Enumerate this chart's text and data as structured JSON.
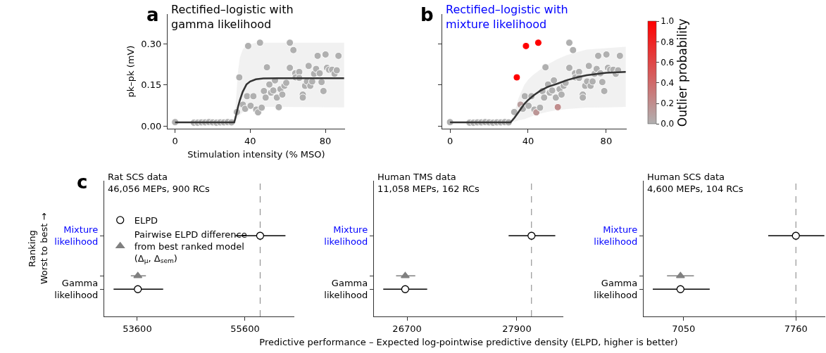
{
  "chart_data": [
    {
      "type": "scatter",
      "title": "Rectified–logistic with\ngamma likelihood",
      "xlabel": "Stimulation intensity (% MSO)",
      "ylabel": "pk–pk (mV)",
      "annotations": [
        "a"
      ],
      "xlim": [
        -4,
        90.5
      ],
      "ylim": [
        -0.01,
        0.41
      ],
      "xticks": [
        0,
        40,
        80
      ],
      "yticks": [
        {
          "value": 0,
          "label": "0.00"
        },
        {
          "value": 0.15,
          "label": "0.15"
        },
        {
          "value": 0.3,
          "label": "0.30"
        }
      ],
      "series": [
        {
          "type": "scatter",
          "marker": "circle",
          "color": "#b0b0b0",
          "x": [
            0,
            10,
            12,
            14,
            16,
            18,
            20,
            22,
            24,
            26,
            28,
            30,
            32.9,
            34.2,
            36.1,
            37.3,
            38.3,
            38.9,
            40.2,
            41.7,
            43.2,
            44.2,
            45.2,
            46.1,
            47.3,
            48.2,
            48.9,
            50.2,
            51.1,
            52.3,
            53.2,
            54.2,
            55.2,
            56.1,
            57.1,
            58.2,
            59.2,
            61.1,
            61.1,
            63.0,
            64.0,
            64.2,
            66.1,
            66.1,
            68.0,
            68.0,
            69.2,
            70.2,
            71.1,
            72.0,
            73.0,
            74.0,
            75.1,
            75.9,
            77.0,
            78.0,
            79.0,
            80.1,
            80.9,
            82.0,
            83.6,
            84.9,
            86.1,
            87.0
          ],
          "values": [
            0.014,
            0.012,
            0.012,
            0.013,
            0.013,
            0.014,
            0.013,
            0.012,
            0.013,
            0.013,
            0.014,
            0.013,
            0.051,
            0.178,
            0.078,
            0.063,
            0.109,
            0.293,
            0.074,
            0.109,
            0.06,
            0.05,
            0.305,
            0.067,
            0.128,
            0.104,
            0.215,
            0.152,
            0.122,
            0.13,
            0.167,
            0.104,
            0.069,
            0.135,
            0.115,
            0.147,
            0.158,
            0.305,
            0.213,
            0.278,
            0.193,
            0.178,
            0.198,
            0.176,
            0.115,
            0.104,
            0.147,
            0.163,
            0.22,
            0.147,
            0.163,
            0.191,
            0.209,
            0.257,
            0.193,
            0.161,
            0.128,
            0.262,
            0.213,
            0.206,
            0.206,
            0.191,
            0.204,
            0.257
          ]
        },
        {
          "type": "line",
          "color": "#333333",
          "x": [
            0,
            31.5,
            32.5,
            33.5,
            34.5,
            36,
            38,
            40,
            43,
            47,
            55,
            90
          ],
          "values": [
            0.013,
            0.013,
            0.04,
            0.07,
            0.095,
            0.125,
            0.152,
            0.163,
            0.171,
            0.174,
            0.175,
            0.175
          ],
          "lower": [
            0.013,
            0.013,
            0.02,
            0.03,
            0.04,
            0.05,
            0.06,
            0.065,
            0.068,
            0.07,
            0.07,
            0.068
          ],
          "upper": [
            0.013,
            0.013,
            0.1,
            0.2,
            0.25,
            0.28,
            0.295,
            0.3,
            0.305,
            0.305,
            0.305,
            0.305
          ]
        }
      ]
    },
    {
      "type": "scatter",
      "title": "Rectified–logistic with\nmixture likelihood",
      "clabel": "Outlier probability",
      "annotations": [
        "b"
      ],
      "tick_labels": "x",
      "xlim": [
        -4,
        90.5
      ],
      "ylim": [
        -0.01,
        0.41
      ],
      "xticks": [
        0,
        40,
        80
      ],
      "yticks": [
        {
          "value": 0,
          "label": null
        },
        {
          "value": 0.15,
          "label": null
        },
        {
          "value": 0.3,
          "label": null
        }
      ],
      "clim": [
        0,
        1
      ],
      "cticks": [
        {
          "value": 0,
          "label": "0.0"
        },
        {
          "value": 0.2,
          "label": "0.2"
        },
        {
          "value": 0.4,
          "label": "0.4"
        },
        {
          "value": 0.6,
          "label": "0.6"
        },
        {
          "value": 0.8,
          "label": "0.8"
        },
        {
          "value": 1,
          "label": "1.0"
        }
      ],
      "series": [
        {
          "type": "scatter",
          "marker": "circle",
          "x": [
            0,
            10,
            12,
            14,
            16,
            18,
            20,
            22,
            24,
            26,
            28,
            30,
            32.9,
            34.2,
            36.1,
            37.3,
            38.3,
            38.9,
            40.2,
            41.7,
            43.2,
            44.2,
            45.2,
            46.1,
            47.3,
            48.2,
            48.9,
            50.2,
            51.1,
            52.3,
            53.2,
            54.2,
            55.2,
            56.1,
            57.1,
            58.2,
            59.2,
            61.1,
            61.1,
            63.0,
            64.0,
            64.2,
            66.1,
            66.1,
            68.0,
            68.0,
            69.2,
            70.2,
            71.1,
            72.0,
            73.0,
            74.0,
            75.1,
            75.9,
            77.0,
            78.0,
            79.0,
            80.1,
            80.9,
            82.0,
            83.6,
            84.9,
            86.1,
            87.0
          ],
          "values": [
            0.014,
            0.012,
            0.012,
            0.013,
            0.013,
            0.014,
            0.013,
            0.012,
            0.013,
            0.013,
            0.014,
            0.013,
            0.051,
            0.178,
            0.078,
            0.063,
            0.109,
            0.293,
            0.074,
            0.109,
            0.06,
            0.05,
            0.305,
            0.067,
            0.128,
            0.104,
            0.215,
            0.152,
            0.122,
            0.13,
            0.167,
            0.104,
            0.069,
            0.135,
            0.115,
            0.147,
            0.158,
            0.305,
            0.213,
            0.278,
            0.193,
            0.178,
            0.198,
            0.176,
            0.115,
            0.104,
            0.147,
            0.163,
            0.22,
            0.147,
            0.163,
            0.191,
            0.209,
            0.257,
            0.193,
            0.161,
            0.128,
            0.262,
            0.213,
            0.206,
            0.206,
            0.191,
            0.204,
            0.257
          ],
          "colors": [
            "#b0b0b0",
            "#b0b0b0",
            "#b0b0b0",
            "#b0b0b0",
            "#b0b0b0",
            "#b0b0b0",
            "#b0b0b0",
            "#b0b0b0",
            "#b0b0b0",
            "#b0b0b0",
            "#b0b0b0",
            "#b0b0b0",
            "#b0b0b0",
            "#ff0000",
            "#b89e9e",
            "#b0b0b0",
            "#b0b0b0",
            "#ff0000",
            "#b0b0b0",
            "#b0b0b0",
            "#b0b0b0",
            "#bc9696",
            "#ff0000",
            "#b0b0b0",
            "#b0b0b0",
            "#b0b0b0",
            "#b0b0b0",
            "#b0b0b0",
            "#b0b0b0",
            "#b0b0b0",
            "#b0b0b0",
            "#b0b0b0",
            "#c08d8d",
            "#b0b0b0",
            "#b0b0b0",
            "#b0b0b0",
            "#b0b0b0",
            "#b0b0b0",
            "#b0b0b0",
            "#b0b0b0",
            "#b0b0b0",
            "#b0b0b0",
            "#b0b0b0",
            "#b0b0b0",
            "#b0b0b0",
            "#b0b0b0",
            "#b0b0b0",
            "#b0b0b0",
            "#b0b0b0",
            "#b0b0b0",
            "#b0b0b0",
            "#b0b0b0",
            "#b0b0b0",
            "#b0b0b0",
            "#b0b0b0",
            "#b0b0b0",
            "#b0b0b0",
            "#b0b0b0",
            "#b0b0b0",
            "#b0b0b0",
            "#b0b0b0",
            "#b0b0b0",
            "#b0b0b0",
            "#b0b0b0"
          ]
        },
        {
          "type": "line",
          "color": "#333333",
          "x": [
            0,
            31,
            33,
            35,
            38,
            40,
            43,
            46,
            50,
            55,
            60,
            65,
            70,
            80,
            90
          ],
          "values": [
            0.013,
            0.013,
            0.03,
            0.05,
            0.08,
            0.095,
            0.113,
            0.128,
            0.143,
            0.155,
            0.168,
            0.178,
            0.186,
            0.195,
            0.198
          ],
          "lower": [
            0.013,
            0.013,
            0.015,
            0.02,
            0.025,
            0.03,
            0.038,
            0.045,
            0.052,
            0.058,
            0.062,
            0.065,
            0.067,
            0.068,
            0.07
          ],
          "upper": [
            0.013,
            0.013,
            0.05,
            0.1,
            0.15,
            0.17,
            0.19,
            0.205,
            0.225,
            0.245,
            0.26,
            0.27,
            0.28,
            0.285,
            0.29
          ]
        }
      ]
    },
    {
      "type": "scatter",
      "orientation": "horizontal",
      "title": "Rat SCS data\n46,056 MEPs, 900 RCs",
      "ylabel": "Ranking\nWorst to best →",
      "annotations": [
        "c"
      ],
      "legend": "left",
      "xlim": [
        52986,
        56515
      ],
      "xticks": [
        53600,
        55600
      ],
      "categories": [
        "Mixture\nlikelihood",
        null,
        "Gamma\nlikelihood"
      ],
      "ref_lines": [
        {
          "axis": "x",
          "value": 55880,
          "color": "#808080",
          "line_style": "dashed"
        }
      ],
      "series": [
        {
          "name": "ELPD",
          "marker": "circle",
          "color": "#000000",
          "values": [
            55880,
            null,
            53610
          ],
          "errors": [
            [
              55420,
              56350
            ],
            null,
            [
              53160,
              54080
            ]
          ]
        },
        {
          "name": "Pairwise ELPD difference\nfrom best ranked model\n(Δ$_{μ}$, Δ$_{sem}$)",
          "marker": "triangle",
          "color": "#808080",
          "values": [
            null,
            53610,
            null
          ],
          "errors": [
            null,
            [
              53480,
              53760
            ],
            null
          ]
        }
      ]
    },
    {
      "type": "scatter",
      "orientation": "horizontal",
      "title": "Human TMS data\n11,058 MEPs, 162 RCs",
      "xlabel": "Predictive performance – Expected log-pointwise predictive density (ELPD, higher is better)",
      "xlim": [
        26338,
        28408
      ],
      "xticks": [
        26700,
        27900
      ],
      "categories": [
        "Mixture\nlikelihood",
        null,
        "Gamma\nlikelihood"
      ],
      "ref_lines": [
        {
          "axis": "x",
          "value": 28060,
          "color": "#808080",
          "line_style": "dashed"
        }
      ],
      "series": [
        {
          "marker": "circle",
          "color": "#000000",
          "values": [
            28060,
            null,
            26680
          ],
          "errors": [
            [
              27810,
              28320
            ],
            null,
            [
              26440,
              26920
            ]
          ]
        },
        {
          "marker": "triangle",
          "color": "#808080",
          "values": [
            null,
            26680,
            null
          ],
          "errors": [
            null,
            [
              26580,
              26790
            ],
            null
          ]
        }
      ]
    },
    {
      "type": "scatter",
      "orientation": "horizontal",
      "title": "Human SCS data\n4,600 MEPs, 104 RCs",
      "xlim": [
        6797,
        7946
      ],
      "xticks": [
        7050,
        7760
      ],
      "categories": [
        "Mixture\nlikelihood",
        null,
        "Gamma\nlikelihood"
      ],
      "ref_lines": [
        {
          "axis": "x",
          "value": 7760,
          "color": "#808080",
          "line_style": "dashed"
        }
      ],
      "series": [
        {
          "marker": "circle",
          "color": "#000000",
          "values": [
            7760,
            null,
            7030
          ],
          "errors": [
            [
              7585,
              7940
            ],
            null,
            [
              6855,
              7215
            ]
          ]
        },
        {
          "marker": "triangle",
          "color": "#808080",
          "values": [
            null,
            7030,
            null
          ],
          "errors": [
            null,
            [
              6945,
              7115
            ],
            null
          ]
        }
      ]
    }
  ]
}
